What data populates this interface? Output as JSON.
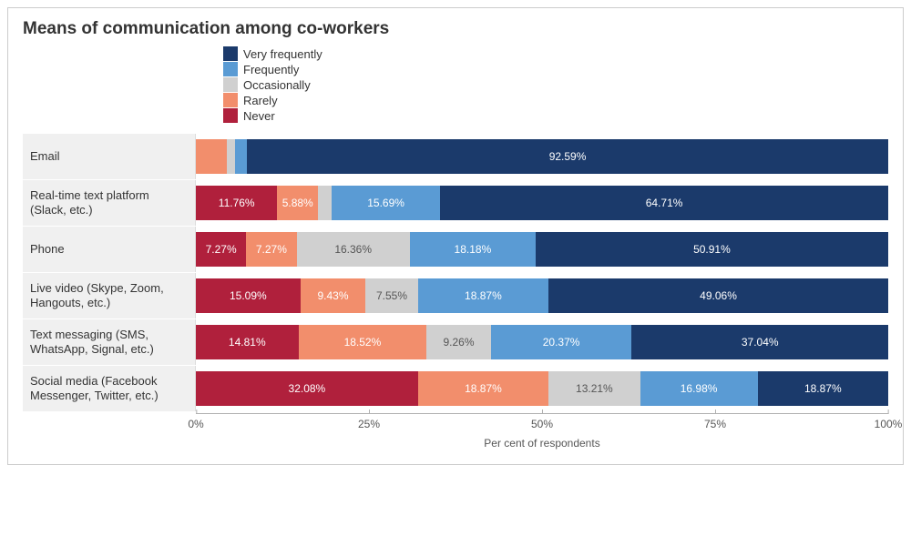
{
  "chart": {
    "type": "stacked-horizontal-bar",
    "title": "Means of communication among co-workers",
    "title_fontsize": 19,
    "background_color": "#ffffff",
    "border_color": "#cccccc",
    "row_label_bg": "#f0f0f0",
    "label_fontsize": 13,
    "value_fontsize": 12,
    "xlabel": "Per cent of respondents",
    "xlim": [
      0,
      100
    ],
    "xticks": [
      0,
      25,
      50,
      75,
      100
    ],
    "xtick_labels": [
      "0%",
      "25%",
      "50%",
      "75%",
      "100%"
    ],
    "legend": {
      "items": [
        {
          "label": "Very frequently",
          "color": "#1b3a6b"
        },
        {
          "label": "Frequently",
          "color": "#5a9bd4"
        },
        {
          "label": "Occasionally",
          "color": "#d0d0d0"
        },
        {
          "label": "Rarely",
          "color": "#f28e6c"
        },
        {
          "label": "Never",
          "color": "#b0203c"
        }
      ]
    },
    "series_order": [
      "Never",
      "Rarely",
      "Occasionally",
      "Frequently",
      "Very frequently"
    ],
    "colors": {
      "Never": "#b0203c",
      "Rarely": "#f28e6c",
      "Occasionally": "#d0d0d0",
      "Frequently": "#5a9bd4",
      "Very frequently": "#1b3a6b"
    },
    "light_segments": [
      "Occasionally"
    ],
    "label_min_pct": 5.0,
    "rows": [
      {
        "label": "Email",
        "segments": [
          {
            "series": "Never",
            "value": 0.0,
            "text": ""
          },
          {
            "series": "Rarely",
            "value": 4.5,
            "text": ""
          },
          {
            "series": "Occasionally",
            "value": 1.2,
            "text": ""
          },
          {
            "series": "Frequently",
            "value": 1.7,
            "text": ""
          },
          {
            "series": "Very frequently",
            "value": 92.59,
            "text": "92.59%"
          }
        ]
      },
      {
        "label": "Real-time text platform (Slack, etc.)",
        "segments": [
          {
            "series": "Never",
            "value": 11.76,
            "text": "11.76%"
          },
          {
            "series": "Rarely",
            "value": 5.88,
            "text": "5.88%"
          },
          {
            "series": "Occasionally",
            "value": 1.96,
            "text": ""
          },
          {
            "series": "Frequently",
            "value": 15.69,
            "text": "15.69%"
          },
          {
            "series": "Very frequently",
            "value": 64.71,
            "text": "64.71%"
          }
        ]
      },
      {
        "label": "Phone",
        "segments": [
          {
            "series": "Never",
            "value": 7.27,
            "text": "7.27%"
          },
          {
            "series": "Rarely",
            "value": 7.27,
            "text": "7.27%"
          },
          {
            "series": "Occasionally",
            "value": 16.36,
            "text": "16.36%"
          },
          {
            "series": "Frequently",
            "value": 18.18,
            "text": "18.18%"
          },
          {
            "series": "Very frequently",
            "value": 50.91,
            "text": "50.91%"
          }
        ]
      },
      {
        "label": "Live video (Skype, Zoom, Hangouts, etc.)",
        "segments": [
          {
            "series": "Never",
            "value": 15.09,
            "text": "15.09%"
          },
          {
            "series": "Rarely",
            "value": 9.43,
            "text": "9.43%"
          },
          {
            "series": "Occasionally",
            "value": 7.55,
            "text": "7.55%"
          },
          {
            "series": "Frequently",
            "value": 18.87,
            "text": "18.87%"
          },
          {
            "series": "Very frequently",
            "value": 49.06,
            "text": "49.06%"
          }
        ]
      },
      {
        "label": "Text messaging (SMS, WhatsApp, Signal, etc.)",
        "segments": [
          {
            "series": "Never",
            "value": 14.81,
            "text": "14.81%"
          },
          {
            "series": "Rarely",
            "value": 18.52,
            "text": "18.52%"
          },
          {
            "series": "Occasionally",
            "value": 9.26,
            "text": "9.26%"
          },
          {
            "series": "Frequently",
            "value": 20.37,
            "text": "20.37%"
          },
          {
            "series": "Very frequently",
            "value": 37.04,
            "text": "37.04%"
          }
        ]
      },
      {
        "label": "Social media (Facebook Messenger, Twitter, etc.)",
        "segments": [
          {
            "series": "Never",
            "value": 32.08,
            "text": "32.08%"
          },
          {
            "series": "Rarely",
            "value": 18.87,
            "text": "18.87%"
          },
          {
            "series": "Occasionally",
            "value": 13.21,
            "text": "13.21%"
          },
          {
            "series": "Frequently",
            "value": 16.98,
            "text": "16.98%"
          },
          {
            "series": "Very frequently",
            "value": 18.87,
            "text": "18.87%"
          }
        ]
      }
    ]
  }
}
